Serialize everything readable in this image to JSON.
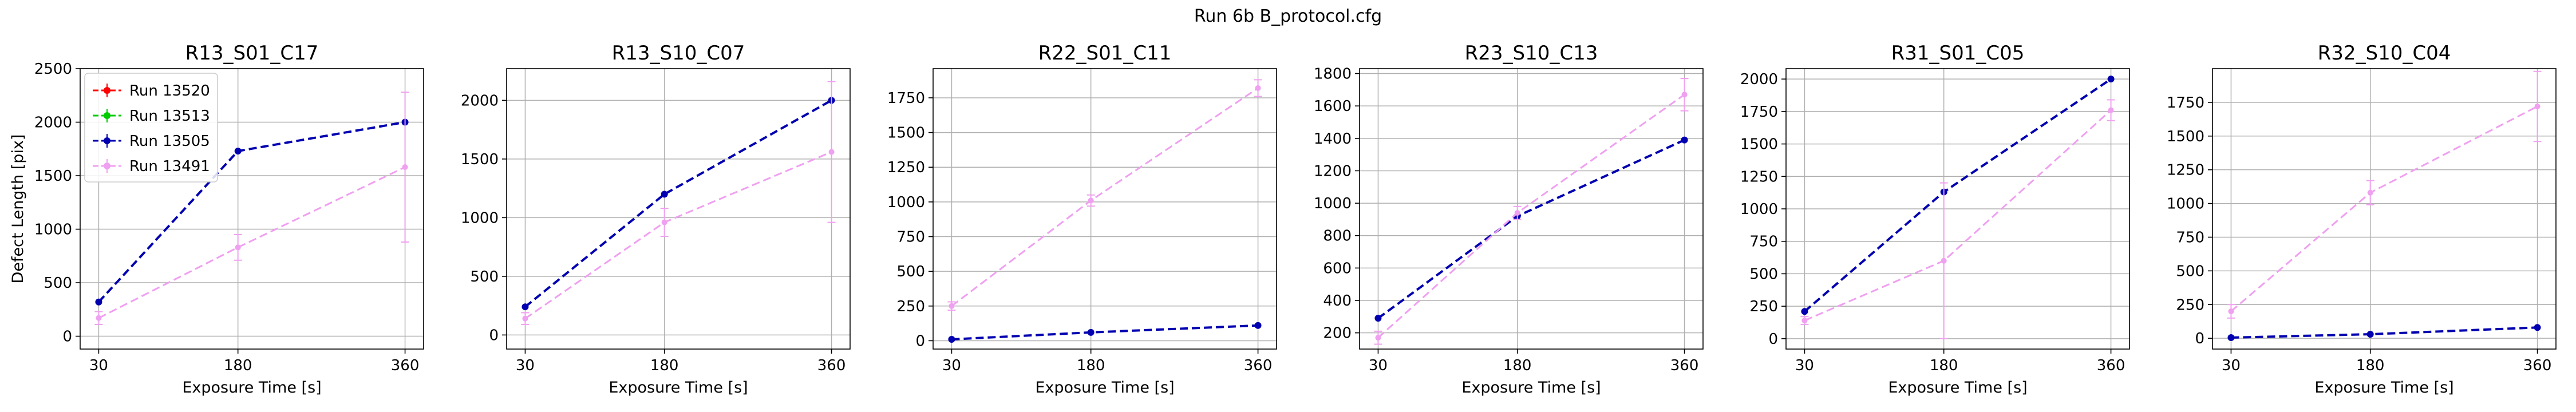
{
  "figure": {
    "suptitle": "Run 6b B_protocol.cfg"
  },
  "legend": {
    "location": "upper-left of first panel",
    "entries": [
      "Run 13520",
      "Run 13513",
      "Run 13505",
      "Run 13491"
    ]
  },
  "colors": {
    "Run 13520": "#ff0000",
    "Run 13513": "#00cc00",
    "Run 13505": "#0000b0",
    "Run 13491": "#f0a0f0",
    "grid": "#b0b0b0"
  },
  "chart_data": [
    {
      "type": "line",
      "title": "R13_S01_C17",
      "xlabel": "Exposure Time [s]",
      "ylabel": "Defect Length [pix]",
      "x": [
        30,
        180,
        360
      ],
      "xticks": [
        30,
        180,
        360
      ],
      "xlim": [
        10,
        380
      ],
      "ylim": [
        -120,
        2500
      ],
      "yticks": [
        0,
        500,
        1000,
        1500,
        2000,
        2500
      ],
      "grid": true,
      "series": [
        {
          "name": "Run 13505",
          "values": [
            320,
            1730,
            2000
          ],
          "err": [
            0,
            0,
            0
          ]
        },
        {
          "name": "Run 13491",
          "values": [
            170,
            830,
            1580
          ],
          "err": [
            60,
            120,
            700
          ]
        }
      ]
    },
    {
      "type": "line",
      "title": "R13_S10_C07",
      "xlabel": "Exposure Time [s]",
      "ylabel": "",
      "x": [
        30,
        180,
        360
      ],
      "xticks": [
        30,
        180,
        360
      ],
      "xlim": [
        10,
        380
      ],
      "ylim": [
        -120,
        2270
      ],
      "yticks": [
        0,
        500,
        1000,
        1500,
        2000
      ],
      "grid": true,
      "series": [
        {
          "name": "Run 13505",
          "values": [
            240,
            1200,
            2000
          ],
          "err": [
            0,
            0,
            0
          ]
        },
        {
          "name": "Run 13491",
          "values": [
            140,
            960,
            1560
          ],
          "err": [
            50,
            120,
            600
          ]
        }
      ]
    },
    {
      "type": "line",
      "title": "R22_S01_C11",
      "xlabel": "Exposure Time [s]",
      "ylabel": "",
      "x": [
        30,
        180,
        360
      ],
      "xticks": [
        30,
        180,
        360
      ],
      "xlim": [
        10,
        380
      ],
      "ylim": [
        -60,
        1960
      ],
      "yticks": [
        0,
        250,
        500,
        750,
        1000,
        1250,
        1500,
        1750
      ],
      "grid": true,
      "series": [
        {
          "name": "Run 13505",
          "values": [
            10,
            60,
            110
          ],
          "err": [
            0,
            0,
            0
          ]
        },
        {
          "name": "Run 13491",
          "values": [
            250,
            1010,
            1820
          ],
          "err": [
            30,
            40,
            60
          ]
        }
      ]
    },
    {
      "type": "line",
      "title": "R23_S10_C13",
      "xlabel": "Exposure Time [s]",
      "ylabel": "",
      "x": [
        30,
        180,
        360
      ],
      "xticks": [
        30,
        180,
        360
      ],
      "xlim": [
        10,
        380
      ],
      "ylim": [
        100,
        1830
      ],
      "yticks": [
        200,
        400,
        600,
        800,
        1000,
        1200,
        1400,
        1600,
        1800
      ],
      "grid": true,
      "series": [
        {
          "name": "Run 13505",
          "values": [
            290,
            920,
            1390
          ],
          "err": [
            0,
            0,
            0
          ]
        },
        {
          "name": "Run 13491",
          "values": [
            170,
            940,
            1670
          ],
          "err": [
            40,
            40,
            100
          ]
        }
      ]
    },
    {
      "type": "line",
      "title": "R31_S01_C05",
      "xlabel": "Exposure Time [s]",
      "ylabel": "",
      "x": [
        30,
        180,
        360
      ],
      "xticks": [
        30,
        180,
        360
      ],
      "xlim": [
        10,
        380
      ],
      "ylim": [
        -80,
        2080
      ],
      "yticks": [
        0,
        250,
        500,
        750,
        1000,
        1250,
        1500,
        1750,
        2000
      ],
      "grid": true,
      "series": [
        {
          "name": "Run 13505",
          "values": [
            210,
            1130,
            2000
          ],
          "err": [
            0,
            0,
            0
          ]
        },
        {
          "name": "Run 13491",
          "values": [
            140,
            600,
            1760
          ],
          "err": [
            30,
            600,
            80
          ]
        }
      ]
    },
    {
      "type": "line",
      "title": "R32_S10_C04",
      "xlabel": "Exposure Time [s]",
      "ylabel": "",
      "x": [
        30,
        180,
        360
      ],
      "xticks": [
        30,
        180,
        360
      ],
      "xlim": [
        10,
        380
      ],
      "ylim": [
        -80,
        2000
      ],
      "yticks": [
        0,
        250,
        500,
        750,
        1000,
        1250,
        1500,
        1750
      ],
      "grid": true,
      "series": [
        {
          "name": "Run 13505",
          "values": [
            5,
            30,
            80
          ],
          "err": [
            0,
            0,
            0
          ]
        },
        {
          "name": "Run 13491",
          "values": [
            200,
            1080,
            1720
          ],
          "err": [
            50,
            90,
            260
          ]
        }
      ]
    }
  ]
}
